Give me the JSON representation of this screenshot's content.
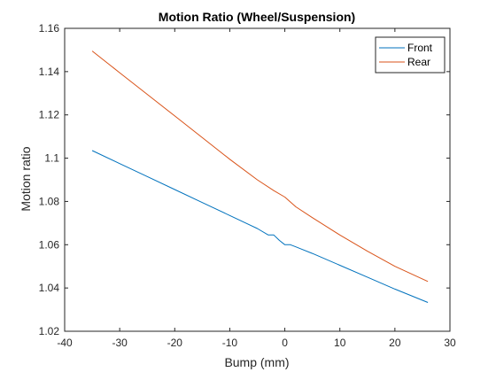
{
  "chart_data": {
    "type": "line",
    "title": "Motion Ratio (Wheel/Suspension)",
    "xlabel": "Bump (mm)",
    "ylabel": "Motion ratio",
    "xlim": [
      -40,
      30
    ],
    "ylim": [
      1.02,
      1.16
    ],
    "xticks": [
      -40,
      -30,
      -20,
      -10,
      0,
      10,
      20,
      30
    ],
    "yticks": [
      1.02,
      1.04,
      1.06,
      1.08,
      1.1,
      1.12,
      1.14,
      1.16
    ],
    "xtick_labels": [
      "-40",
      "-30",
      "-20",
      "-10",
      "0",
      "10",
      "20",
      "30"
    ],
    "ytick_labels": [
      "1.02",
      "1.04",
      "1.06",
      "1.08",
      "1.1",
      "1.12",
      "1.14",
      "1.16"
    ],
    "grid": false,
    "legend_position": "top-right",
    "series": [
      {
        "name": "Front",
        "color": "#0072BD",
        "x": [
          -35,
          -30,
          -25,
          -20,
          -15,
          -10,
          -5,
          -3,
          -2,
          -1,
          0,
          1,
          2,
          3,
          5,
          10,
          15,
          20,
          26
        ],
        "y": [
          1.1035,
          1.0975,
          1.0915,
          1.0855,
          1.0795,
          1.0735,
          1.0675,
          1.0645,
          1.0645,
          1.062,
          1.06,
          1.06,
          1.059,
          1.058,
          1.056,
          1.0505,
          1.045,
          1.0395,
          1.0333
        ]
      },
      {
        "name": "Rear",
        "color": "#D95319",
        "x": [
          -35,
          -30,
          -25,
          -20,
          -15,
          -10,
          -5,
          -2,
          0,
          2,
          5,
          10,
          15,
          20,
          26
        ],
        "y": [
          1.1495,
          1.1395,
          1.1295,
          1.1195,
          1.1095,
          1.0995,
          1.09,
          1.085,
          1.082,
          1.0775,
          1.0725,
          1.0645,
          1.057,
          1.05,
          1.043
        ]
      }
    ]
  }
}
